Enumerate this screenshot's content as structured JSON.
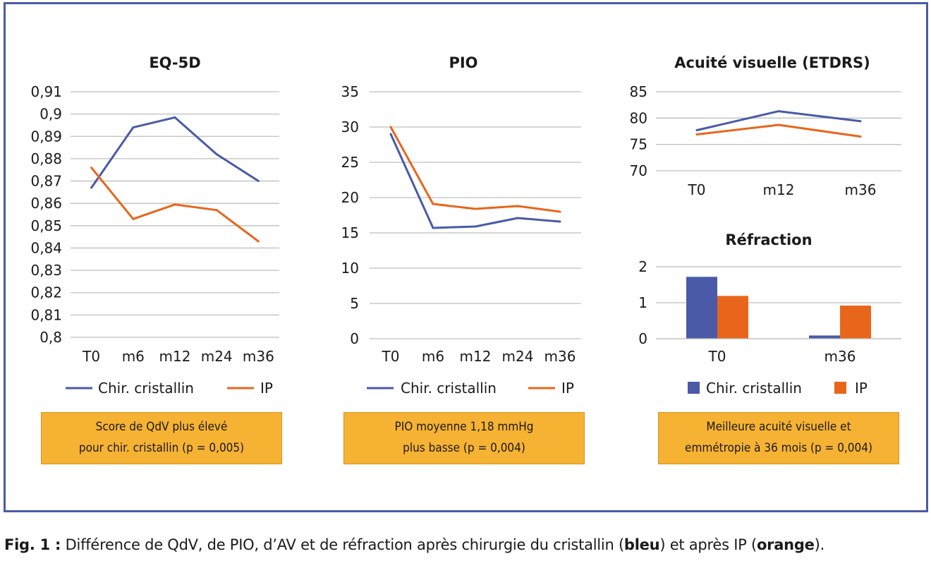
{
  "colors": {
    "blue": "#4a5aa8",
    "orange": "#e8661c",
    "grid": "#bfbfbf",
    "note_bg": "#f6b233"
  },
  "legend": {
    "series_blue": "Chir. cristallin",
    "series_orange": "IP"
  },
  "chart_data": [
    {
      "type": "line",
      "title": "EQ-5D",
      "categories": [
        "T0",
        "m6",
        "m12",
        "m24",
        "m36"
      ],
      "ylim": [
        0.8,
        0.91
      ],
      "yticks": [
        "0,91",
        "0,9",
        "0,89",
        "0,88",
        "0,87",
        "0,86",
        "0,85",
        "0,84",
        "0,83",
        "0,82",
        "0,81",
        "0,8"
      ],
      "series": [
        {
          "name": "Chir. cristallin",
          "values": [
            0.867,
            0.894,
            0.8985,
            0.882,
            0.87
          ]
        },
        {
          "name": "IP",
          "values": [
            0.876,
            0.853,
            0.8595,
            0.857,
            0.843
          ]
        }
      ],
      "legend": "bottom",
      "grid": true
    },
    {
      "type": "line",
      "title": "PIO",
      "categories": [
        "T0",
        "m6",
        "m12",
        "m24",
        "m36"
      ],
      "ylim": [
        0,
        35
      ],
      "yticks": [
        "35",
        "30",
        "25",
        "20",
        "15",
        "10",
        "5",
        "0"
      ],
      "series": [
        {
          "name": "Chir. cristallin",
          "values": [
            29.0,
            15.7,
            15.9,
            17.1,
            16.6
          ]
        },
        {
          "name": "IP",
          "values": [
            30.0,
            19.1,
            18.4,
            18.8,
            18.0
          ]
        }
      ],
      "legend": "bottom",
      "grid": true
    },
    {
      "type": "line",
      "title": "Acuité visuelle (ETDRS)",
      "categories": [
        "T0",
        "m12",
        "m36"
      ],
      "ylim": [
        70,
        85
      ],
      "yticks": [
        "85",
        "80",
        "75",
        "70"
      ],
      "series": [
        {
          "name": "Chir. cristallin",
          "values": [
            77.7,
            81.3,
            79.4
          ]
        },
        {
          "name": "IP",
          "values": [
            76.9,
            78.7,
            76.5
          ]
        }
      ],
      "grid": true
    },
    {
      "type": "bar",
      "title": "Réfraction",
      "categories": [
        "T0",
        "m36"
      ],
      "ylim": [
        0,
        2
      ],
      "yticks": [
        "2",
        "1",
        "0"
      ],
      "series": [
        {
          "name": "Chir. cristallin",
          "values": [
            1.72,
            0.09
          ]
        },
        {
          "name": "IP",
          "values": [
            1.19,
            0.92
          ]
        }
      ],
      "legend": "bottom",
      "grid": true
    }
  ],
  "notes": [
    {
      "line1": "Score de QdV plus élevé",
      "line2": "pour chir. cristallin (p = 0,005)"
    },
    {
      "line1": "PIO moyenne 1,18 mmHg",
      "line2": "plus basse (p = 0,004)"
    },
    {
      "line1": "Meilleure acuité visuelle et",
      "line2": "emmétropie à 36 mois (p = 0,004)"
    }
  ],
  "caption": {
    "label": "Fig. 1 :",
    "text_1": " Différence de QdV, de PIO, d’AV et de réfraction après chirurgie du cristallin (",
    "bold_1": "bleu",
    "text_2": ") et après IP (",
    "bold_2": "orange",
    "text_3": ")."
  }
}
